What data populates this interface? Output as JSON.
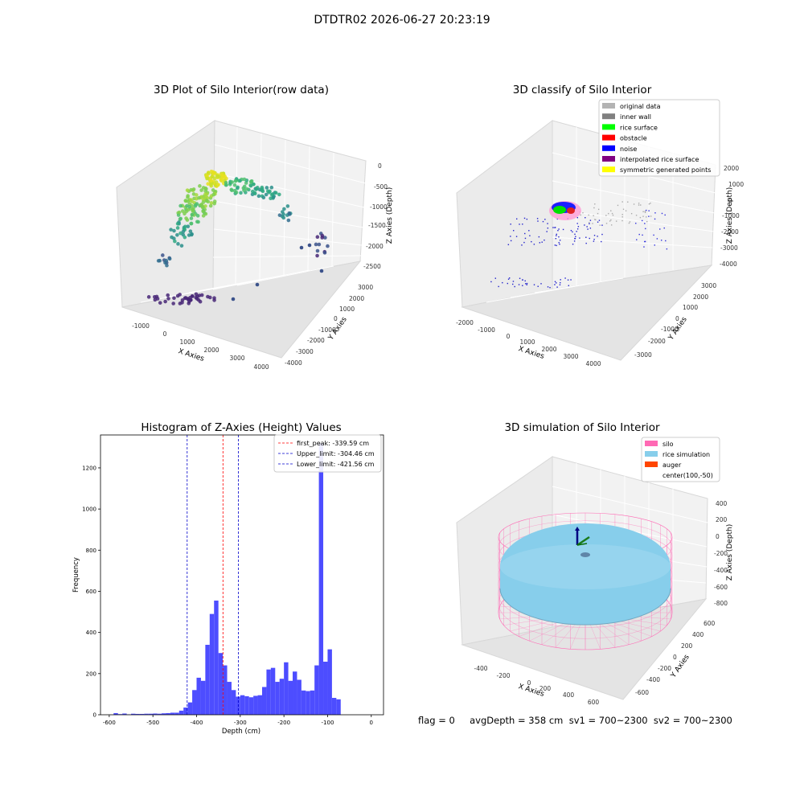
{
  "figure": {
    "suptitle": "DTDTR02 2026-06-27 20:23:19"
  },
  "panel_raw": {
    "title": "3D Plot of Silo Interior(row data)",
    "xlabel": "X Axies",
    "ylabel": "Y Axies",
    "zlabel": "Z Axies (Depth)",
    "xticks": [
      "-1000",
      "0",
      "1000",
      "2000",
      "3000",
      "4000"
    ],
    "yticks": [
      "3000",
      "2000",
      "1000",
      "0",
      "-1000",
      "-2000",
      "-3000",
      "-4000"
    ],
    "zticks": [
      "0",
      "-500",
      "-1000",
      "-1500",
      "-2000",
      "-2500"
    ]
  },
  "panel_classify": {
    "title": "3D classify of Silo Interior",
    "xlabel": "X Axies",
    "ylabel": "Y Axies",
    "zlabel": "Z Axies (Depth)",
    "xticks": [
      "-2000",
      "-1000",
      "0",
      "1000",
      "2000",
      "3000",
      "4000"
    ],
    "yticks": [
      "3000",
      "2000",
      "1000",
      "0",
      "-1000",
      "-2000",
      "-3000"
    ],
    "zticks": [
      "2000",
      "1000",
      "0",
      "-1000",
      "-2000",
      "-3000",
      "-4000"
    ],
    "legend": [
      {
        "label": "original data",
        "color": "#b3b3b3"
      },
      {
        "label": "inner wall",
        "color": "#808080"
      },
      {
        "label": "rice surface",
        "color": "#00ff00"
      },
      {
        "label": "obstacle",
        "color": "#ff0000"
      },
      {
        "label": "noise",
        "color": "#0000ff"
      },
      {
        "label": "interpolated rice surface",
        "color": "#800080"
      },
      {
        "label": "symmetric generated points",
        "color": "#ffff00"
      }
    ]
  },
  "panel_sim": {
    "title": "3D simulation of Silo Interior",
    "xlabel": "X Axies",
    "ylabel": "Y Axies",
    "zlabel": "Z Axies (Depth)",
    "xticks": [
      "-400",
      "-200",
      "0",
      "200",
      "400",
      "600"
    ],
    "yticks": [
      "600",
      "400",
      "200",
      "0",
      "-200",
      "-400",
      "-600"
    ],
    "zticks": [
      "400",
      "200",
      "0",
      "-200",
      "-400",
      "-600",
      "-800"
    ],
    "legend": [
      {
        "label": "silo",
        "color": "#ff69b4"
      },
      {
        "label": "rice simulation",
        "color": "#87ceeb"
      },
      {
        "label": "auger",
        "color": "#ff4500"
      },
      {
        "label": "center(100,-50)",
        "color": ""
      }
    ]
  },
  "footer": {
    "text": "flag = 0     avgDepth = 358 cm  sv1 = 700~2300  sv2 = 700~2300"
  },
  "colors": {
    "hist_bar": "#4d4dff",
    "first_peak_line": "#ff0000",
    "limit_line": "#0000cc"
  },
  "chart_data": {
    "type": "bar",
    "title": "Histogram of Z-Axies (Height) Values",
    "xlabel": "Depth (cm)",
    "ylabel": "Frequency",
    "xlim": [
      -620,
      28
    ],
    "ylim": [
      0,
      1360
    ],
    "xticks": [
      -600,
      -500,
      -400,
      -300,
      -200,
      -100,
      0
    ],
    "yticks": [
      0,
      200,
      400,
      600,
      800,
      1000,
      1200
    ],
    "bins": [
      [
        -590,
        -580,
        8
      ],
      [
        -580,
        -570,
        3
      ],
      [
        -570,
        -560,
        6
      ],
      [
        -560,
        -550,
        2
      ],
      [
        -550,
        -540,
        5
      ],
      [
        -540,
        -530,
        4
      ],
      [
        -530,
        -520,
        4
      ],
      [
        -520,
        -510,
        5
      ],
      [
        -510,
        -500,
        5
      ],
      [
        -500,
        -490,
        6
      ],
      [
        -490,
        -480,
        5
      ],
      [
        -480,
        -470,
        7
      ],
      [
        -470,
        -460,
        8
      ],
      [
        -460,
        -450,
        10
      ],
      [
        -450,
        -440,
        10
      ],
      [
        -440,
        -430,
        20
      ],
      [
        -430,
        -420,
        35
      ],
      [
        -420,
        -410,
        60
      ],
      [
        -410,
        -400,
        120
      ],
      [
        -400,
        -390,
        180
      ],
      [
        -390,
        -380,
        165
      ],
      [
        -380,
        -370,
        340
      ],
      [
        -370,
        -360,
        490
      ],
      [
        -360,
        -350,
        555
      ],
      [
        -350,
        -340,
        300
      ],
      [
        -340,
        -330,
        240
      ],
      [
        -330,
        -320,
        160
      ],
      [
        -320,
        -310,
        120
      ],
      [
        -310,
        -300,
        88
      ],
      [
        -300,
        -290,
        95
      ],
      [
        -290,
        -280,
        90
      ],
      [
        -280,
        -270,
        85
      ],
      [
        -270,
        -260,
        92
      ],
      [
        -260,
        -250,
        95
      ],
      [
        -250,
        -240,
        135
      ],
      [
        -240,
        -230,
        220
      ],
      [
        -230,
        -220,
        228
      ],
      [
        -220,
        -210,
        160
      ],
      [
        -210,
        -200,
        175
      ],
      [
        -200,
        -190,
        255
      ],
      [
        -190,
        -180,
        165
      ],
      [
        -180,
        -170,
        210
      ],
      [
        -170,
        -160,
        170
      ],
      [
        -160,
        -150,
        118
      ],
      [
        -150,
        -140,
        115
      ],
      [
        -140,
        -130,
        118
      ],
      [
        -130,
        -120,
        240
      ],
      [
        -120,
        -110,
        1320
      ],
      [
        -110,
        -100,
        258
      ],
      [
        -100,
        -90,
        318
      ],
      [
        -90,
        -80,
        82
      ],
      [
        -80,
        -70,
        75
      ]
    ],
    "vlines": [
      {
        "label": "first_peak: -339.59 cm",
        "x": -339.59,
        "color": "#ff0000"
      },
      {
        "label": "Upper_limit: -304.46 cm",
        "x": -304.46,
        "color": "#0000cc"
      },
      {
        "label": "Lower_limit: -421.56 cm",
        "x": -421.56,
        "color": "#0000cc"
      }
    ]
  }
}
